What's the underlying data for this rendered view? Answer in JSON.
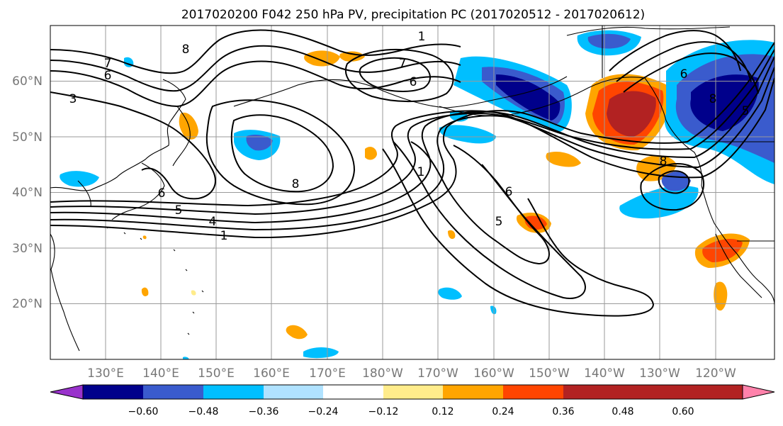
{
  "title": "2017020200 F042 250 hPa PV, precipitation PC (2017020512 - 2017020612)",
  "map": {
    "lon_range": [
      120,
      251
    ],
    "lat_range": [
      10,
      70
    ],
    "lat_ticks": [
      {
        "value": 20,
        "label": "20°N"
      },
      {
        "value": 30,
        "label": "30°N"
      },
      {
        "value": 40,
        "label": "40°N"
      },
      {
        "value": 50,
        "label": "50°N"
      },
      {
        "value": 60,
        "label": "60°N"
      }
    ],
    "lon_ticks": [
      {
        "value": 130,
        "label": "130°E"
      },
      {
        "value": 140,
        "label": "140°E"
      },
      {
        "value": 150,
        "label": "150°E"
      },
      {
        "value": 160,
        "label": "160°E"
      },
      {
        "value": 170,
        "label": "170°E"
      },
      {
        "value": 180,
        "label": "180°W"
      },
      {
        "value": 190,
        "label": "170°W"
      },
      {
        "value": 200,
        "label": "160°W"
      },
      {
        "value": 210,
        "label": "150°W"
      },
      {
        "value": 220,
        "label": "140°W"
      },
      {
        "value": 230,
        "label": "130°W"
      },
      {
        "value": 240,
        "label": "120°W"
      }
    ],
    "contour_labels": [
      "1",
      "3",
      "4",
      "5",
      "6",
      "7",
      "8"
    ]
  },
  "colorbar": {
    "colors": [
      "#9932CC",
      "#00008B",
      "#3A5BCD",
      "#00BFFF",
      "#B0E2FF",
      "#FFFFFF",
      "#FFEC8B",
      "#FFA500",
      "#FF4500",
      "#B22222",
      "#FF82AB"
    ],
    "tick_labels": [
      "−0.60",
      "−0.48",
      "−0.36",
      "−0.24",
      "−0.12",
      "0.12",
      "0.24",
      "0.36",
      "0.48",
      "0.60"
    ]
  }
}
